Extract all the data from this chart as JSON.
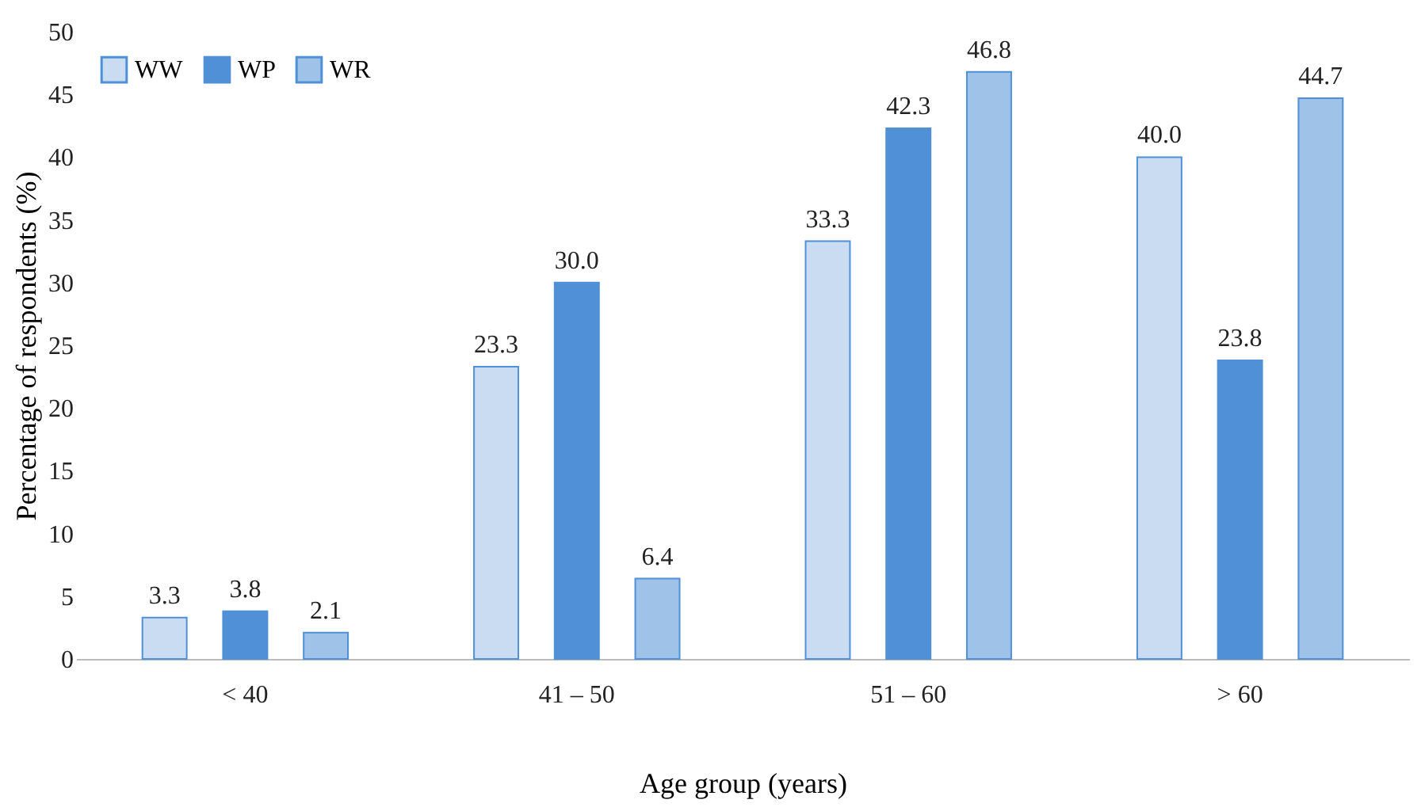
{
  "chart_data": {
    "type": "bar",
    "xlabel": "Age group (years)",
    "ylabel": "Percentage of respondents (%)",
    "categories": [
      "< 40",
      "41 – 50",
      "51 – 60",
      "> 60"
    ],
    "series": [
      {
        "name": "WW",
        "color": "#c9dcf2",
        "values": [
          3.3,
          23.3,
          33.3,
          40.0
        ],
        "value_labels": [
          "3.3",
          "23.3",
          "33.3",
          "40.0"
        ]
      },
      {
        "name": "WP",
        "color": "#4f90d6",
        "values": [
          3.8,
          30.0,
          42.3,
          23.8
        ],
        "value_labels": [
          "3.8",
          "30.0",
          "42.3",
          "23.8"
        ]
      },
      {
        "name": "WR",
        "color": "#9fc2e8",
        "values": [
          2.1,
          6.4,
          46.8,
          44.7
        ],
        "value_labels": [
          "2.1",
          "6.4",
          "46.8",
          "44.7"
        ]
      }
    ],
    "ylim": [
      0,
      50
    ],
    "yticks": [
      0,
      5,
      10,
      15,
      20,
      25,
      30,
      35,
      40,
      45,
      50
    ],
    "grid": false,
    "legend": "top left"
  }
}
